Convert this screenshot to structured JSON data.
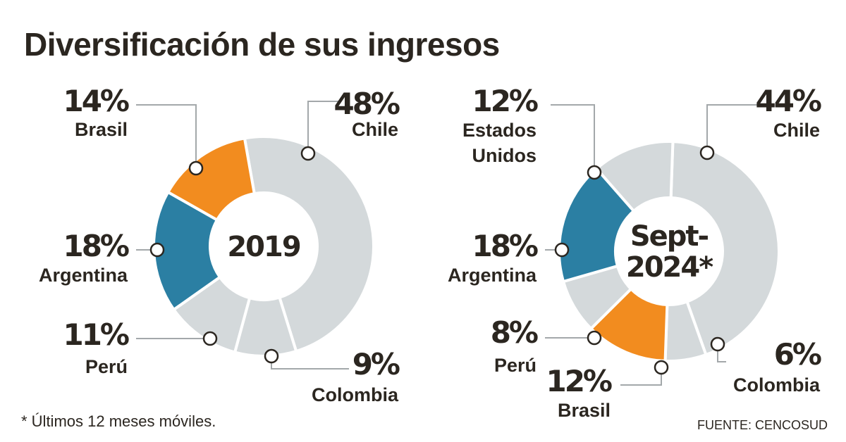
{
  "title": "Diversificación de sus ingresos",
  "footnote": "* Últimos 12 meses móviles.",
  "source": "FUENTE: CENCOSUD",
  "colors": {
    "brasil": "#f28c1f",
    "argentina": "#2b7fa3",
    "gray": "#d4d9db",
    "text": "#2b2620"
  },
  "chart_data": [
    {
      "type": "pie",
      "center_label": [
        "2019"
      ],
      "slices": [
        {
          "name": "Chile",
          "pct_label": "48%",
          "value": 48,
          "label": [
            "Chile"
          ],
          "color": "#d4d9db"
        },
        {
          "name": "Colombia",
          "pct_label": "9%",
          "value": 9,
          "label": [
            "Colombia"
          ],
          "color": "#d4d9db"
        },
        {
          "name": "Perú",
          "pct_label": "11%",
          "value": 11,
          "label": [
            "Perú"
          ],
          "color": "#d4d9db"
        },
        {
          "name": "Argentina",
          "pct_label": "18%",
          "value": 18,
          "label": [
            "Argentina"
          ],
          "color": "#2b7fa3"
        },
        {
          "name": "Brasil",
          "pct_label": "14%",
          "value": 14,
          "label": [
            "Brasil"
          ],
          "color": "#f28c1f"
        }
      ]
    },
    {
      "type": "pie",
      "center_label": [
        "Sept-",
        "2024*"
      ],
      "slices": [
        {
          "name": "Chile",
          "pct_label": "44%",
          "value": 44,
          "label": [
            "Chile"
          ],
          "color": "#d4d9db"
        },
        {
          "name": "Colombia",
          "pct_label": "6%",
          "value": 6,
          "label": [
            "Colombia"
          ],
          "color": "#d4d9db"
        },
        {
          "name": "Brasil",
          "pct_label": "12%",
          "value": 12,
          "label": [
            "Brasil"
          ],
          "color": "#f28c1f"
        },
        {
          "name": "Perú",
          "pct_label": "8%",
          "value": 8,
          "label": [
            "Perú"
          ],
          "color": "#d4d9db"
        },
        {
          "name": "Argentina",
          "pct_label": "18%",
          "value": 18,
          "label": [
            "Argentina"
          ],
          "color": "#2b7fa3"
        },
        {
          "name": "Estados Unidos",
          "pct_label": "12%",
          "value": 12,
          "label": [
            "Estados",
            "Unidos"
          ],
          "color": "#d4d9db"
        }
      ]
    }
  ]
}
